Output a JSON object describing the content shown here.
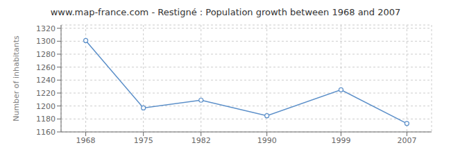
{
  "chart_data": {
    "type": "line",
    "title": "www.map-france.com - Restigné : Population growth between 1968 and 2007",
    "ylabel": "Number of inhabitants",
    "x": [
      1968,
      1975,
      1982,
      1990,
      1999,
      2007
    ],
    "values": [
      1301,
      1197,
      1209,
      1185,
      1225,
      1173
    ],
    "color": "#5b8fc9",
    "marker": "circle",
    "xlim": [
      1965,
      2010
    ],
    "xticks": [
      1968,
      1975,
      1982,
      1990,
      1999,
      2007
    ],
    "ylim": [
      1160,
      1325
    ],
    "yticks": [
      1160,
      1180,
      1200,
      1220,
      1240,
      1260,
      1280,
      1300,
      1320
    ],
    "grid": true
  }
}
